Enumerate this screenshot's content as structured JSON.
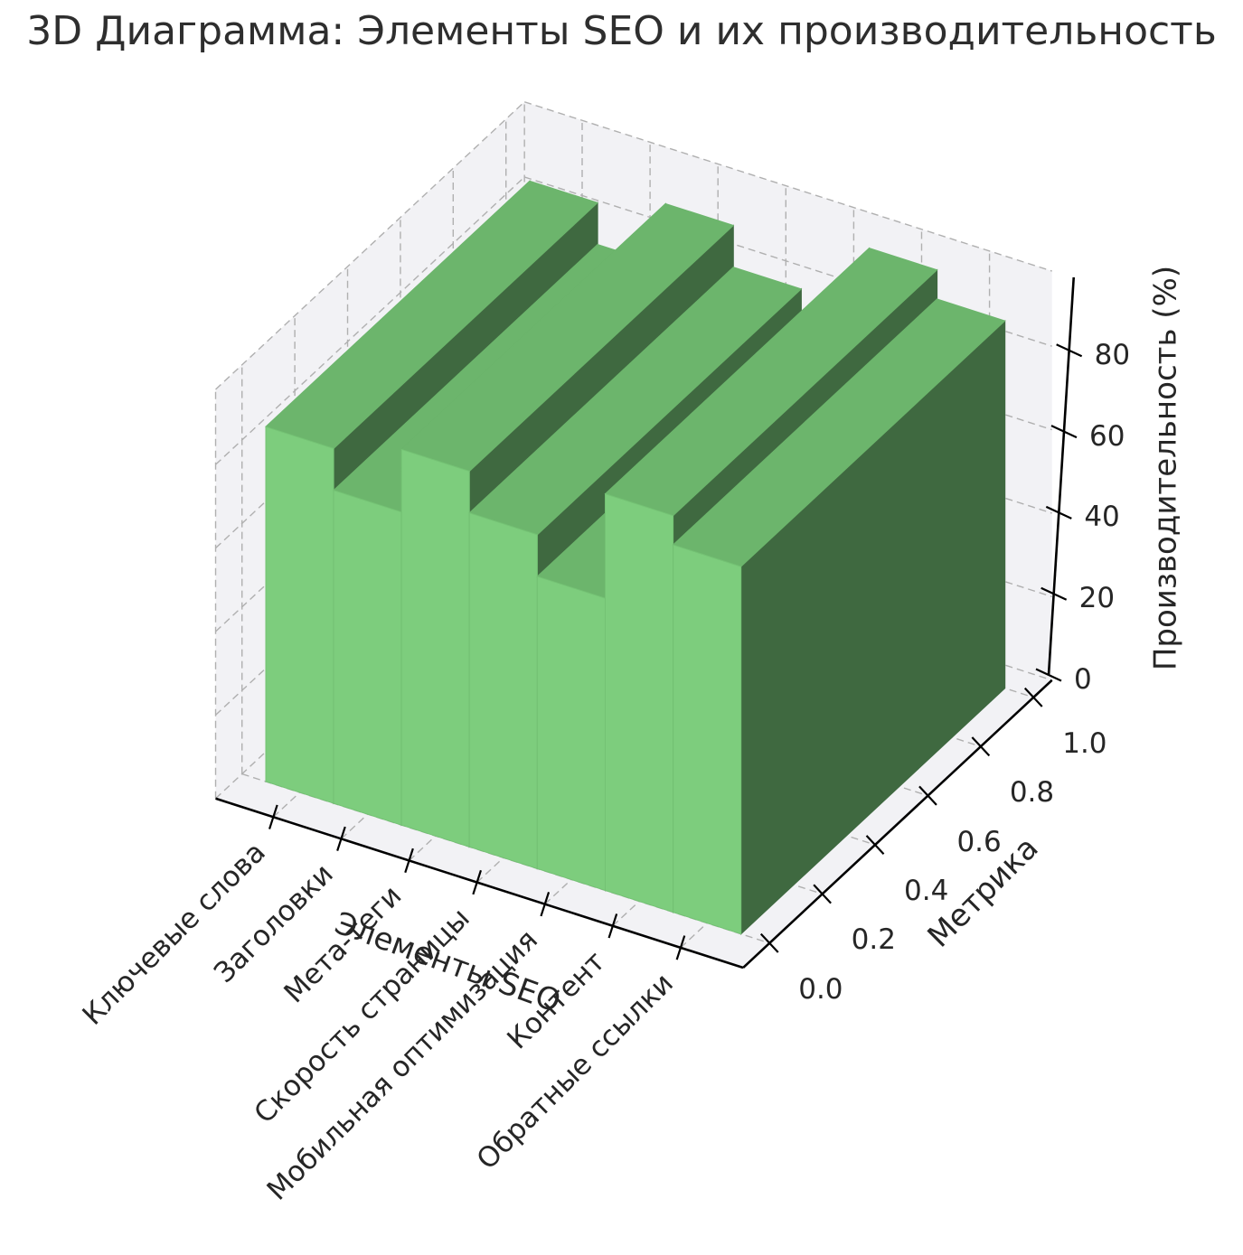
{
  "title": "3D Диаграмма: Элементы SEO и их производительность",
  "chart_data": {
    "type": "bar",
    "subtype": "bar3d",
    "title": "3D Диаграмма: Элементы SEO и их производительность",
    "categories": [
      "Ключевые слова",
      "Заголовки",
      "Мета-теги",
      "Скорость страницы",
      "Мобильная оптимизация",
      "Контент",
      "Обратные ссылки"
    ],
    "values": [
      85,
      75,
      90,
      80,
      70,
      95,
      88
    ],
    "xlabel": "Элементы SEO",
    "ylabel": "Метрика",
    "zlabel": "Производительность (%)",
    "y_tick_labels": [
      "0.0",
      "0.2",
      "0.4",
      "0.6",
      "0.8",
      "1.0"
    ],
    "y_ticks": [
      0,
      0.2,
      0.4,
      0.6,
      0.8,
      1.0
    ],
    "z_ticks": [
      0,
      20,
      40,
      60,
      80
    ],
    "zlim": [
      0,
      98
    ],
    "ylim": [
      0,
      1
    ],
    "grid": true,
    "grid_style": "dashed",
    "legend": "none",
    "colors": {
      "bar_front": "#7dcd7d",
      "bar_top": "#6cb56c",
      "bar_side_dark": "#3f6940",
      "bar_side_light": "#65ac65",
      "pane": "#f1f1f4",
      "grid_line": "#b0b0b0",
      "axis_line": "#000000",
      "text": "#262626",
      "background": "#ffffff"
    }
  }
}
